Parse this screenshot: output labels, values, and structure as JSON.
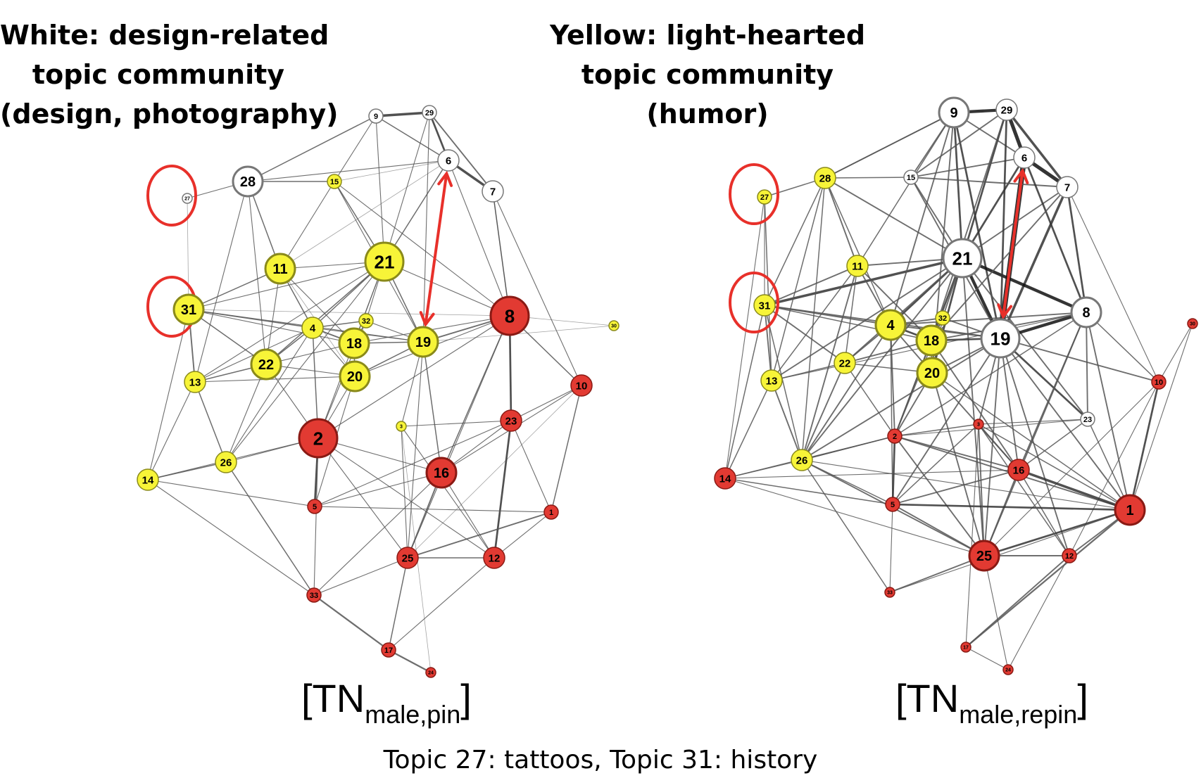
{
  "captions": {
    "left": [
      "White: design-related",
      "topic community",
      "(design, photography)"
    ],
    "right": [
      "Yellow: light-hearted",
      "topic community",
      "(humor)"
    ]
  },
  "labels": {
    "left": {
      "main": "[TN",
      "sub": "male,pin",
      "close": "]"
    },
    "right": {
      "main": "[TN",
      "sub": "male,repin",
      "close": "]"
    }
  },
  "footnote": "Topic 27: tattoos, Topic 31: history",
  "colors": {
    "white": "#ffffff",
    "yellow": "#f7f438",
    "red": "#e23a32",
    "edge": "#555555",
    "highlight": "#e8302a"
  },
  "networks": [
    {
      "name": "left",
      "nodes": [
        {
          "id": "27",
          "color": "white",
          "size": "xs"
        },
        {
          "id": "28",
          "color": "white",
          "size": "l"
        },
        {
          "id": "9",
          "color": "white",
          "size": "s"
        },
        {
          "id": "29",
          "color": "white",
          "size": "s"
        },
        {
          "id": "6",
          "color": "white",
          "size": "m"
        },
        {
          "id": "7",
          "color": "white",
          "size": "m"
        },
        {
          "id": "15",
          "color": "yellow",
          "size": "s"
        },
        {
          "id": "11",
          "color": "yellow",
          "size": "l"
        },
        {
          "id": "21",
          "color": "yellow",
          "size": "xl"
        },
        {
          "id": "31",
          "color": "yellow",
          "size": "l"
        },
        {
          "id": "4",
          "color": "yellow",
          "size": "m"
        },
        {
          "id": "32",
          "color": "yellow",
          "size": "s"
        },
        {
          "id": "18",
          "color": "yellow",
          "size": "l"
        },
        {
          "id": "19",
          "color": "yellow",
          "size": "l"
        },
        {
          "id": "22",
          "color": "yellow",
          "size": "l"
        },
        {
          "id": "20",
          "color": "yellow",
          "size": "l"
        },
        {
          "id": "13",
          "color": "yellow",
          "size": "m"
        },
        {
          "id": "3",
          "color": "yellow",
          "size": "xs"
        },
        {
          "id": "30",
          "color": "yellow",
          "size": "xs"
        },
        {
          "id": "26",
          "color": "yellow",
          "size": "m"
        },
        {
          "id": "14",
          "color": "yellow",
          "size": "m"
        },
        {
          "id": "8",
          "color": "red",
          "size": "xl"
        },
        {
          "id": "10",
          "color": "red",
          "size": "m"
        },
        {
          "id": "2",
          "color": "red",
          "size": "xl"
        },
        {
          "id": "23",
          "color": "red",
          "size": "m"
        },
        {
          "id": "16",
          "color": "red",
          "size": "l"
        },
        {
          "id": "5",
          "color": "red",
          "size": "s"
        },
        {
          "id": "1",
          "color": "red",
          "size": "s"
        },
        {
          "id": "25",
          "color": "red",
          "size": "m"
        },
        {
          "id": "12",
          "color": "red",
          "size": "m"
        },
        {
          "id": "33",
          "color": "red",
          "size": "s"
        },
        {
          "id": "17",
          "color": "red",
          "size": "s"
        },
        {
          "id": "24",
          "color": "red",
          "size": "xs"
        }
      ],
      "circled": [
        "27",
        "31"
      ],
      "arrow": [
        "6",
        "19"
      ]
    },
    {
      "name": "right",
      "nodes": [
        {
          "id": "27",
          "color": "yellow",
          "size": "s"
        },
        {
          "id": "28",
          "color": "yellow",
          "size": "m"
        },
        {
          "id": "9",
          "color": "white",
          "size": "l"
        },
        {
          "id": "29",
          "color": "white",
          "size": "m"
        },
        {
          "id": "6",
          "color": "white",
          "size": "m"
        },
        {
          "id": "7",
          "color": "white",
          "size": "m"
        },
        {
          "id": "15",
          "color": "white",
          "size": "s"
        },
        {
          "id": "11",
          "color": "yellow",
          "size": "m"
        },
        {
          "id": "21",
          "color": "white",
          "size": "xl"
        },
        {
          "id": "31",
          "color": "yellow",
          "size": "m"
        },
        {
          "id": "4",
          "color": "yellow",
          "size": "l"
        },
        {
          "id": "32",
          "color": "yellow",
          "size": "s"
        },
        {
          "id": "18",
          "color": "yellow",
          "size": "l"
        },
        {
          "id": "19",
          "color": "white",
          "size": "xl"
        },
        {
          "id": "8",
          "color": "white",
          "size": "l"
        },
        {
          "id": "22",
          "color": "yellow",
          "size": "m"
        },
        {
          "id": "20",
          "color": "yellow",
          "size": "l"
        },
        {
          "id": "13",
          "color": "yellow",
          "size": "m"
        },
        {
          "id": "3",
          "color": "red",
          "size": "xs"
        },
        {
          "id": "23",
          "color": "white",
          "size": "s"
        },
        {
          "id": "30",
          "color": "red",
          "size": "xs"
        },
        {
          "id": "10",
          "color": "red",
          "size": "s"
        },
        {
          "id": "2",
          "color": "red",
          "size": "s"
        },
        {
          "id": "26",
          "color": "yellow",
          "size": "m"
        },
        {
          "id": "14",
          "color": "red",
          "size": "m"
        },
        {
          "id": "16",
          "color": "red",
          "size": "m"
        },
        {
          "id": "5",
          "color": "red",
          "size": "s"
        },
        {
          "id": "1",
          "color": "red",
          "size": "l"
        },
        {
          "id": "25",
          "color": "red",
          "size": "l"
        },
        {
          "id": "12",
          "color": "red",
          "size": "s"
        },
        {
          "id": "33",
          "color": "red",
          "size": "xs"
        },
        {
          "id": "17",
          "color": "red",
          "size": "xs"
        },
        {
          "id": "24",
          "color": "red",
          "size": "xs"
        }
      ],
      "circled": [
        "27",
        "31"
      ],
      "arrow": [
        "6",
        "19"
      ]
    }
  ]
}
